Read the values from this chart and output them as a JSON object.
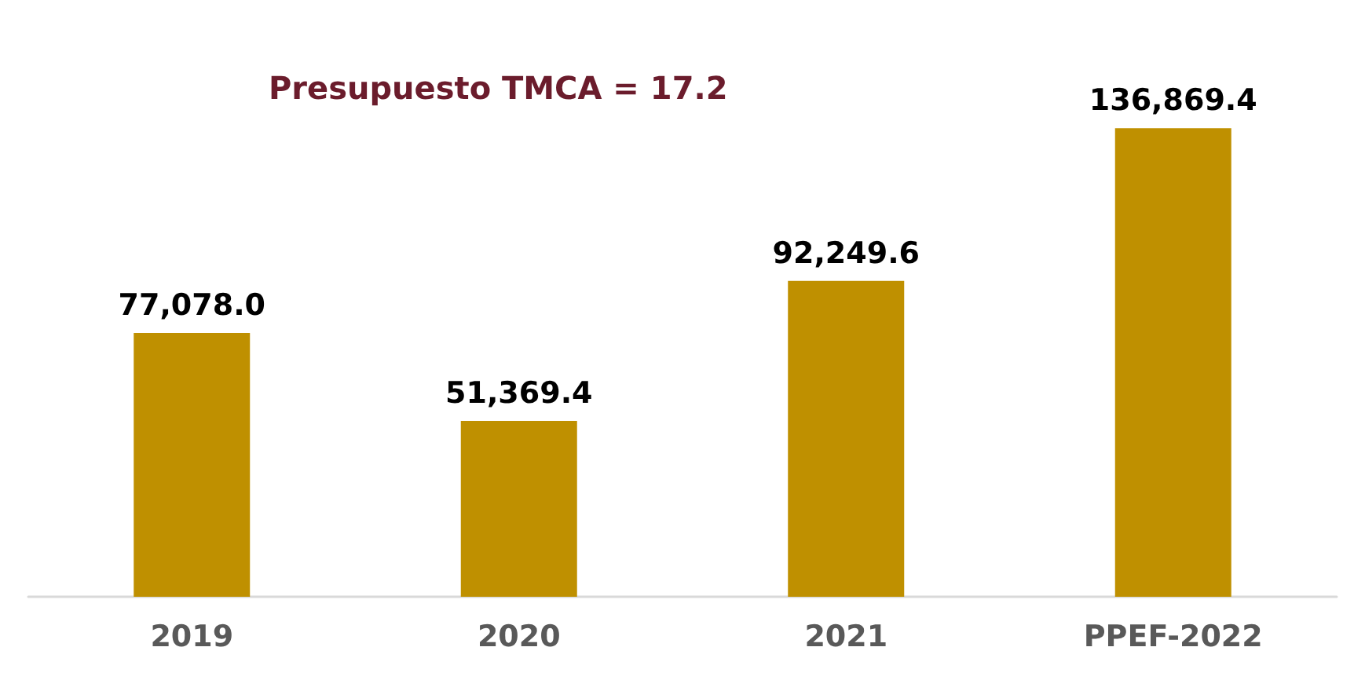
{
  "chart_data": {
    "type": "bar",
    "categories": [
      "2019",
      "2020",
      "2021",
      "PPEF-2022"
    ],
    "values": [
      77078.0,
      51369.4,
      92249.6,
      136869.4
    ],
    "value_labels": [
      "77,078.0",
      "51,369.4",
      "92,249.6",
      "136,869.4"
    ],
    "color": "#bf9000",
    "annotations": [
      "Presupuesto TMCA = 17.2"
    ]
  }
}
